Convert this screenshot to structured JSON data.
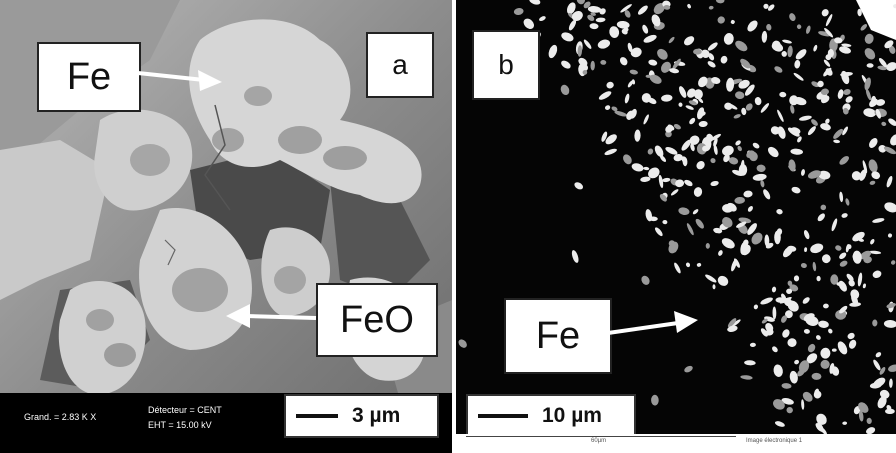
{
  "panel_a": {
    "letter": "a",
    "label_fe": "Fe",
    "label_feo": "FeO",
    "magnification": "Grand. =  2.83 K X",
    "detector": "Détecteur = CENT",
    "eht": "EHT = 15.00 kV",
    "scale_bar": "3 µm"
  },
  "panel_b": {
    "letter": "b",
    "label_fe": "Fe",
    "scale_bar": "10 µm",
    "footer_scale": "60µm",
    "footer_caption": "Image électronique 1"
  }
}
